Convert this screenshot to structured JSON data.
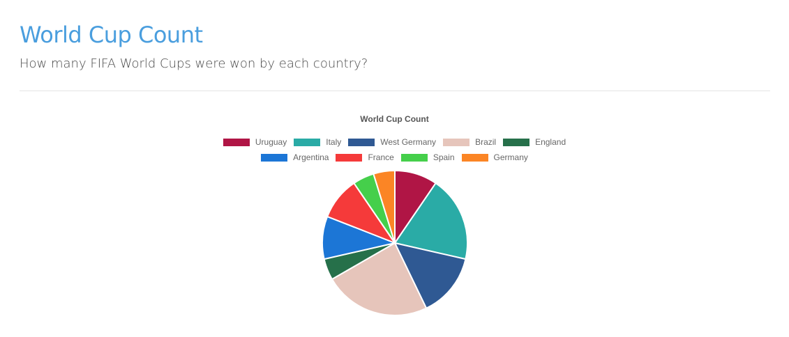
{
  "header": {
    "title": "World Cup Count",
    "subtitle": "How many FIFA World Cups were won by each country?"
  },
  "chart_data": {
    "type": "pie",
    "title": "World Cup Count",
    "legend_position": "top",
    "categories": [
      "Uruguay",
      "Italy",
      "West Germany",
      "Brazil",
      "England",
      "Argentina",
      "France",
      "Spain",
      "Germany"
    ],
    "values": [
      2,
      4,
      3,
      5,
      1,
      2,
      2,
      1,
      1
    ],
    "colors": [
      "#b01545",
      "#2aaba6",
      "#2f5993",
      "#e6c5bb",
      "#26704a",
      "#1c76d6",
      "#f53a3a",
      "#45cf4b",
      "#fb8525"
    ]
  }
}
